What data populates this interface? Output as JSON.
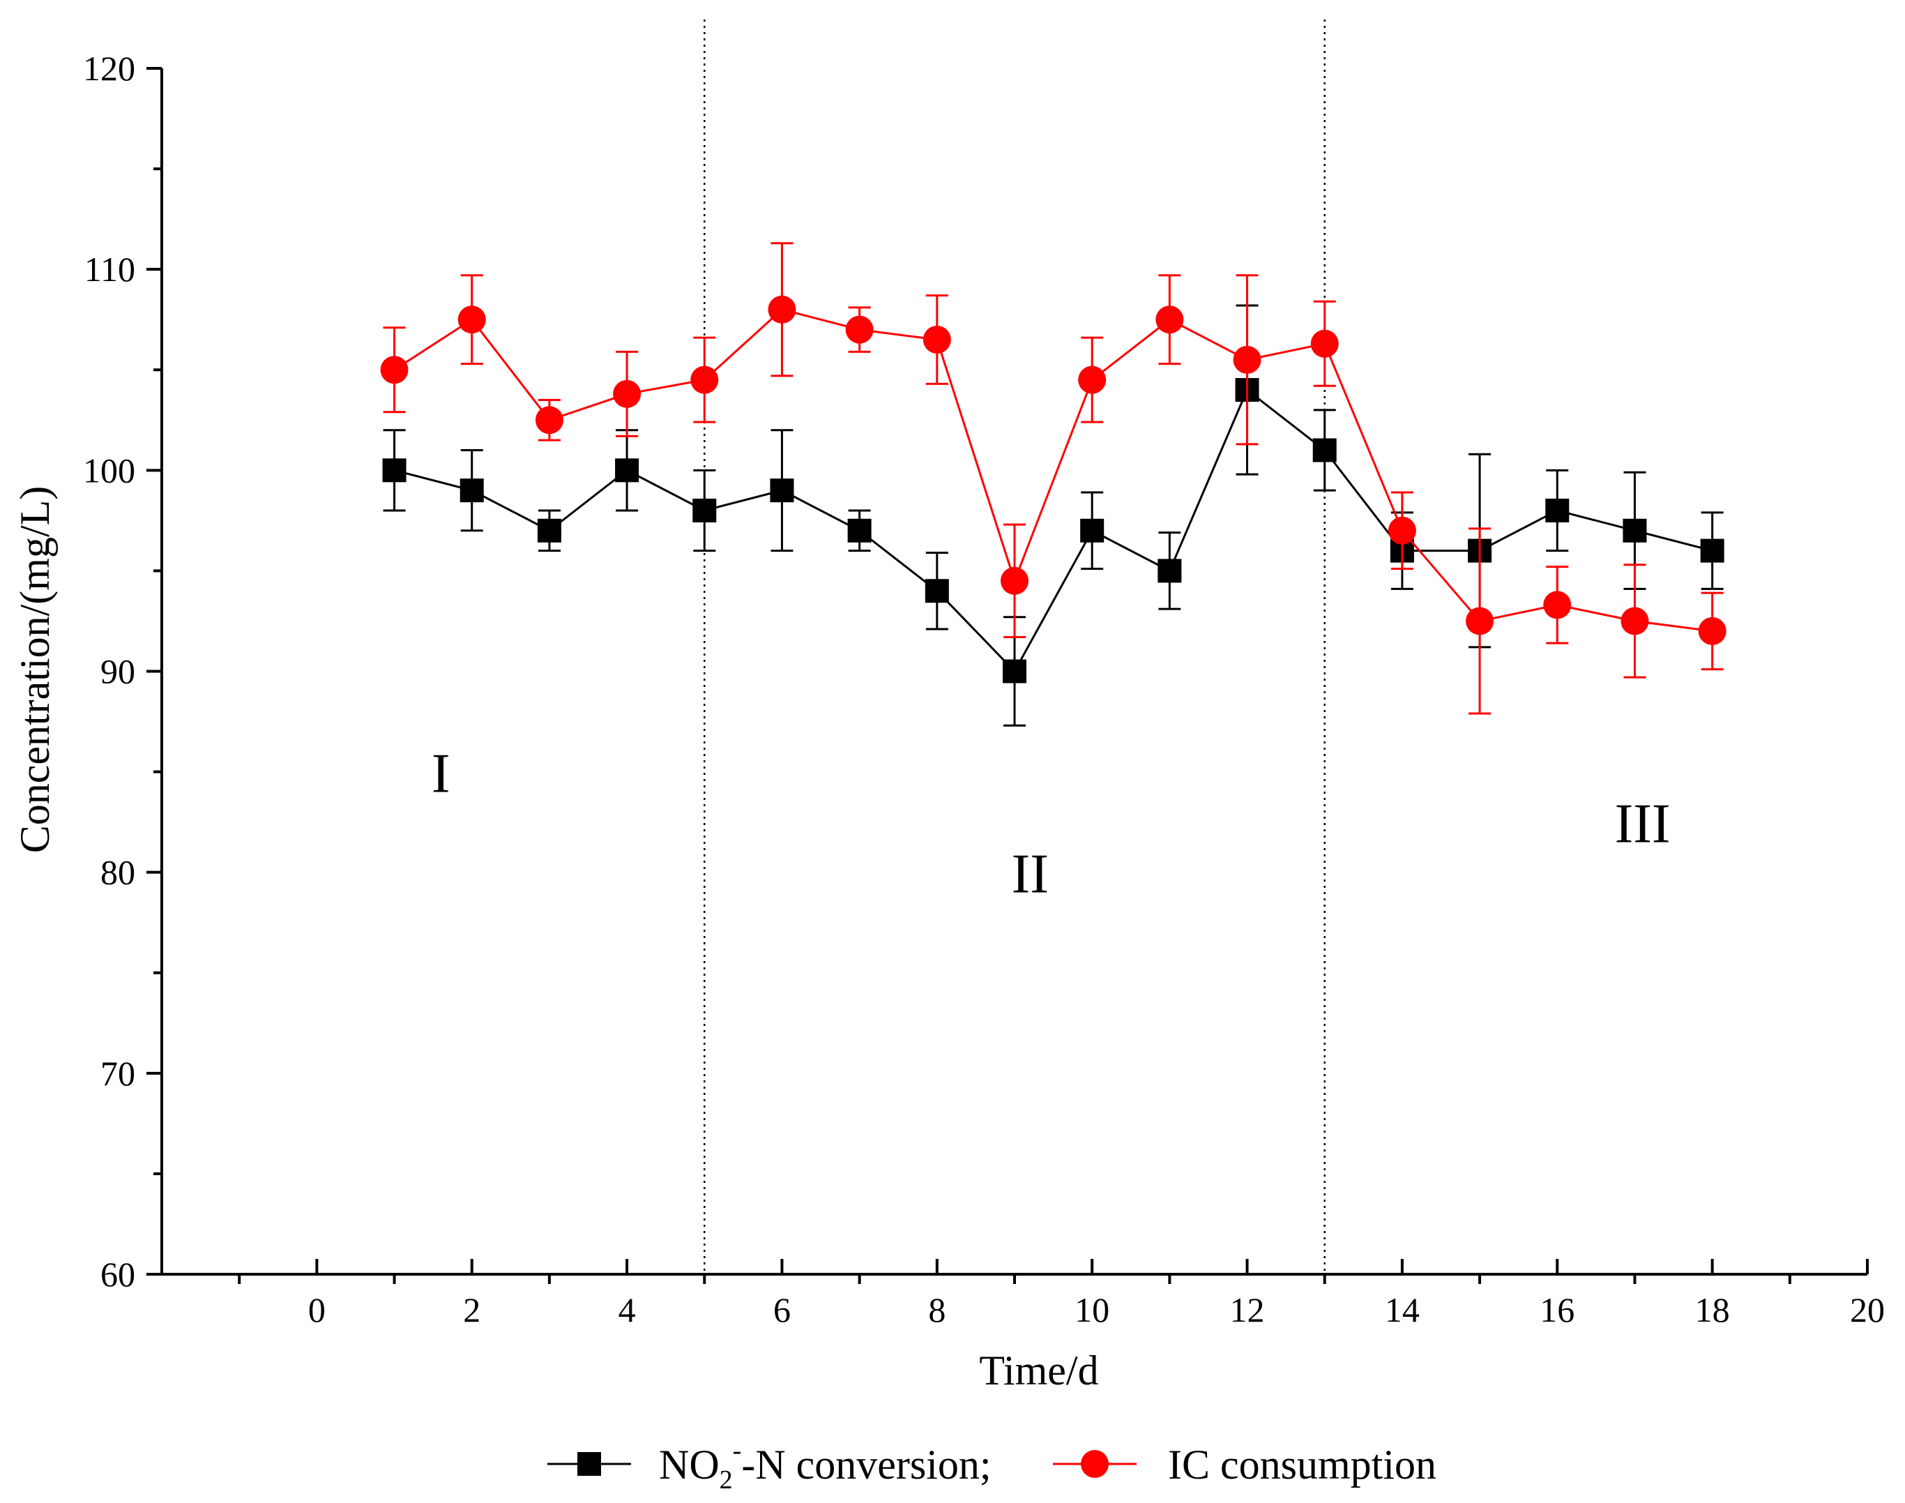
{
  "chart_data": {
    "type": "line",
    "xlabel": "Time/d",
    "ylabel": "Concentration/(mg/L)",
    "xlim": [
      -2,
      20
    ],
    "ylim": [
      60,
      120
    ],
    "x_ticks": [
      0,
      2,
      4,
      6,
      8,
      10,
      12,
      14,
      16,
      18,
      20
    ],
    "x_tick_labels": [
      "0",
      "2",
      "4",
      "6",
      "8",
      "10",
      "12",
      "14",
      "16",
      "18",
      "20"
    ],
    "y_ticks": [
      60,
      70,
      80,
      90,
      100,
      110,
      120
    ],
    "y_tick_labels": [
      "60",
      "70",
      "80",
      "90",
      "100",
      "110",
      "120"
    ],
    "grid": false,
    "legend_position": "bottom",
    "phase_dividers": [
      5,
      13
    ],
    "regions": [
      {
        "label": "I",
        "x": 1.6,
        "y": 84
      },
      {
        "label": "II",
        "x": 9.2,
        "y": 79
      },
      {
        "label": "III",
        "x": 17.1,
        "y": 81.5
      }
    ],
    "series": [
      {
        "name": "NO2--N conversion",
        "legend_main": "NO",
        "legend_sub": "2",
        "legend_sup": "-",
        "legend_rest": "-N conversion;",
        "color": "#000000",
        "marker": "square",
        "x": [
          1,
          2,
          3,
          4,
          5,
          6,
          7,
          8,
          9,
          10,
          11,
          12,
          13,
          14,
          15,
          16,
          17,
          18
        ],
        "values": [
          100,
          99,
          97,
          100,
          98,
          99,
          97,
          94,
          90,
          97,
          95,
          104,
          101,
          96,
          96,
          98,
          97,
          96
        ],
        "errors": [
          2,
          2,
          1,
          2,
          2,
          3,
          1,
          1.9,
          2.7,
          1.9,
          1.9,
          4.2,
          2,
          1.9,
          4.8,
          2,
          2.9,
          1.9
        ]
      },
      {
        "name": "IC consumption",
        "legend_main": "IC consumption",
        "color": "#ff0000",
        "marker": "circle",
        "x": [
          1,
          2,
          3,
          4,
          5,
          6,
          7,
          8,
          9,
          10,
          11,
          12,
          13,
          14,
          15,
          16,
          17,
          18
        ],
        "values": [
          105,
          107.5,
          102.5,
          103.8,
          104.5,
          108,
          107,
          106.5,
          94.5,
          104.5,
          107.5,
          105.5,
          106.3,
          97,
          92.5,
          93.3,
          92.5,
          92
        ],
        "errors": [
          2.1,
          2.2,
          1,
          2.1,
          2.1,
          3.3,
          1.1,
          2.2,
          2.8,
          2.1,
          2.2,
          4.2,
          2.1,
          1.9,
          4.6,
          1.9,
          2.8,
          1.9
        ]
      }
    ]
  }
}
